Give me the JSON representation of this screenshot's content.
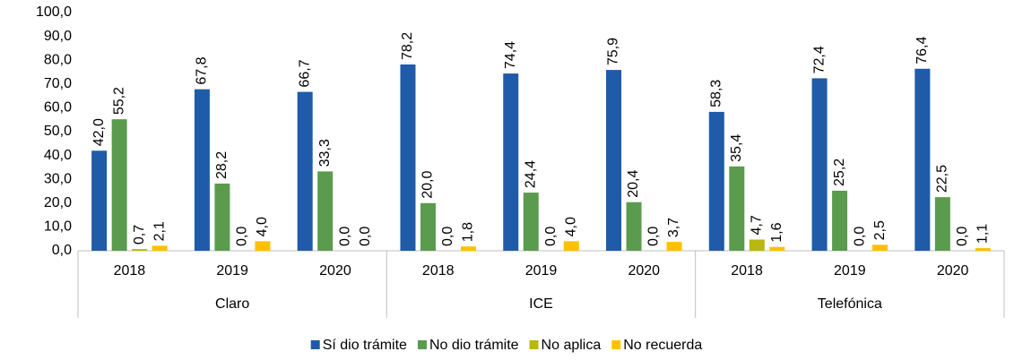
{
  "chart_data": {
    "type": "bar",
    "categories": [
      "2018",
      "2019",
      "2020",
      "2018",
      "2019",
      "2020",
      "2018",
      "2019",
      "2020"
    ],
    "groups": [
      {
        "name": "Claro",
        "count": 3
      },
      {
        "name": "ICE",
        "count": 3
      },
      {
        "name": "Telefónica",
        "count": 3
      }
    ],
    "series": [
      {
        "name": "Sí dio trámite",
        "color": "#1f5ba8",
        "values": [
          42.0,
          67.8,
          66.7,
          78.2,
          74.4,
          75.9,
          58.3,
          72.4,
          76.4
        ],
        "value_labels": [
          "42,0",
          "67,8",
          "66,7",
          "78,2",
          "74,4",
          "75,9",
          "58,3",
          "72,4",
          "76,4"
        ]
      },
      {
        "name": "No dio trámite",
        "color": "#5b9b4e",
        "values": [
          55.2,
          28.2,
          33.3,
          20.0,
          24.4,
          20.4,
          35.4,
          25.2,
          22.5
        ],
        "value_labels": [
          "55,2",
          "28,2",
          "33,3",
          "20,0",
          "24,4",
          "20,4",
          "35,4",
          "25,2",
          "22,5"
        ]
      },
      {
        "name": "No aplica",
        "color": "#b8b80f",
        "values": [
          0.7,
          0.0,
          0.0,
          0.0,
          0.0,
          0.0,
          4.7,
          0.0,
          0.0
        ],
        "value_labels": [
          "0,7",
          "0,0",
          "0,0",
          "0,0",
          "0,0",
          "0,0",
          "4,7",
          "0,0",
          "0,0"
        ]
      },
      {
        "name": "No recuerda",
        "color": "#ffc000",
        "values": [
          2.1,
          4.0,
          0.0,
          1.8,
          4.0,
          3.7,
          1.6,
          2.5,
          1.1
        ],
        "value_labels": [
          "2,1",
          "4,0",
          "0,0",
          "1,8",
          "4,0",
          "3,7",
          "1,6",
          "2,5",
          "1,1"
        ]
      }
    ],
    "ylim": [
      0,
      100
    ],
    "yticks": [
      {
        "value": 0,
        "label": "0,0"
      },
      {
        "value": 10,
        "label": "10,0"
      },
      {
        "value": 20,
        "label": "20,0"
      },
      {
        "value": 30,
        "label": "30,0"
      },
      {
        "value": 40,
        "label": "40,0"
      },
      {
        "value": 50,
        "label": "50,0"
      },
      {
        "value": 60,
        "label": "60,0"
      },
      {
        "value": 70,
        "label": "70,0"
      },
      {
        "value": 80,
        "label": "80,0"
      },
      {
        "value": 90,
        "label": "90,0"
      },
      {
        "value": 100,
        "label": "100,0"
      }
    ],
    "grid": false,
    "legend": "bottom"
  }
}
